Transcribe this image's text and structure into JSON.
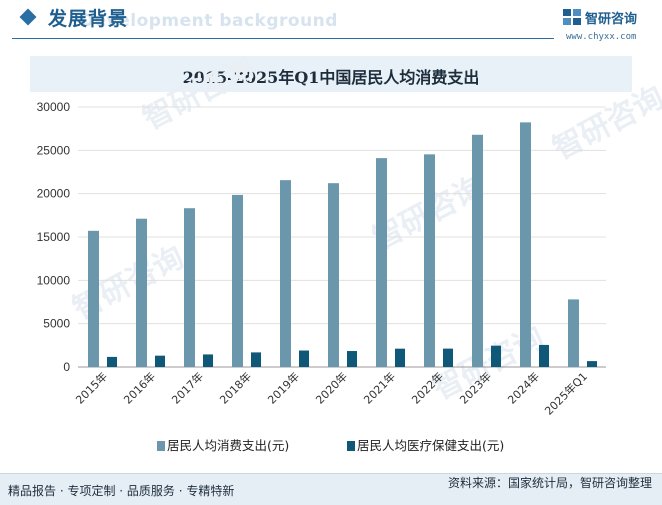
{
  "header": {
    "title": "发展背景",
    "watermark_text": "Development background",
    "logo_name": "智研咨询",
    "logo_url": "www.chyxx.com"
  },
  "colors": {
    "consumption": "#6b97ad",
    "healthcare": "#0f5878",
    "brand": "#1f5f8f"
  },
  "chart_data": {
    "type": "bar",
    "title": "2015-2025年Q1中国居民人均消费支出",
    "categories": [
      "2015年",
      "2016年",
      "2017年",
      "2018年",
      "2019年",
      "2020年",
      "2021年",
      "2022年",
      "2023年",
      "2024年",
      "2025年Q1"
    ],
    "series": [
      {
        "name": "居民人均消费支出(元)",
        "values": [
          15712,
          17111,
          18322,
          19853,
          21559,
          21210,
          24100,
          24538,
          26796,
          28227,
          7800
        ],
        "color": "#6b97ad"
      },
      {
        "name": "居民人均医疗保健支出(元)",
        "values": [
          1165,
          1307,
          1451,
          1685,
          1902,
          1843,
          2115,
          2120,
          2460,
          2547,
          680
        ],
        "color": "#0f5878"
      }
    ],
    "ylim": [
      0,
      30000
    ],
    "yticks": [
      0,
      5000,
      10000,
      15000,
      20000,
      25000,
      30000
    ],
    "grid": true,
    "legend": "bottom",
    "watermark_text": "智研咨询"
  },
  "footer": {
    "left_text": "精品报告 · 专项定制 · 品质服务 · 专精特新",
    "source_text": "资料来源：国家统计局，智研咨询整理"
  }
}
